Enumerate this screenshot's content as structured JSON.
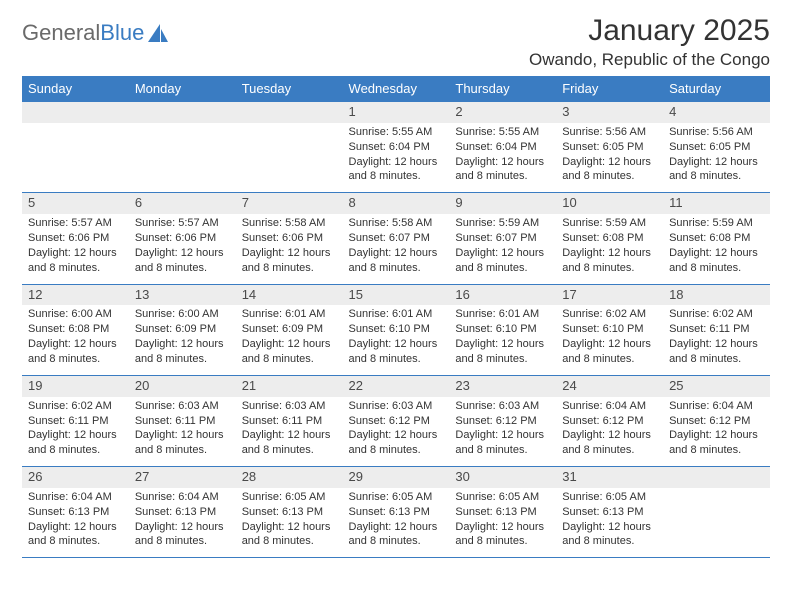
{
  "brand": {
    "part1": "General",
    "part2": "Blue"
  },
  "title": "January 2025",
  "location": "Owando, Republic of the Congo",
  "colors": {
    "accent": "#3a7cc2",
    "header_bg": "#ededed",
    "text": "#333333",
    "logo_gray": "#6a6a6a",
    "bg": "#ffffff"
  },
  "typography": {
    "title_fontsize": 30,
    "location_fontsize": 17,
    "dow_fontsize": 13,
    "daynum_fontsize": 13,
    "body_fontsize": 11
  },
  "layout": {
    "columns": 7,
    "rows": 5
  },
  "days_of_week": [
    "Sunday",
    "Monday",
    "Tuesday",
    "Wednesday",
    "Thursday",
    "Friday",
    "Saturday"
  ],
  "weeks": [
    [
      {
        "n": "",
        "sunrise": "",
        "sunset": "",
        "daylight": ""
      },
      {
        "n": "",
        "sunrise": "",
        "sunset": "",
        "daylight": ""
      },
      {
        "n": "",
        "sunrise": "",
        "sunset": "",
        "daylight": ""
      },
      {
        "n": "1",
        "sunrise": "Sunrise: 5:55 AM",
        "sunset": "Sunset: 6:04 PM",
        "daylight": "Daylight: 12 hours and 8 minutes."
      },
      {
        "n": "2",
        "sunrise": "Sunrise: 5:55 AM",
        "sunset": "Sunset: 6:04 PM",
        "daylight": "Daylight: 12 hours and 8 minutes."
      },
      {
        "n": "3",
        "sunrise": "Sunrise: 5:56 AM",
        "sunset": "Sunset: 6:05 PM",
        "daylight": "Daylight: 12 hours and 8 minutes."
      },
      {
        "n": "4",
        "sunrise": "Sunrise: 5:56 AM",
        "sunset": "Sunset: 6:05 PM",
        "daylight": "Daylight: 12 hours and 8 minutes."
      }
    ],
    [
      {
        "n": "5",
        "sunrise": "Sunrise: 5:57 AM",
        "sunset": "Sunset: 6:06 PM",
        "daylight": "Daylight: 12 hours and 8 minutes."
      },
      {
        "n": "6",
        "sunrise": "Sunrise: 5:57 AM",
        "sunset": "Sunset: 6:06 PM",
        "daylight": "Daylight: 12 hours and 8 minutes."
      },
      {
        "n": "7",
        "sunrise": "Sunrise: 5:58 AM",
        "sunset": "Sunset: 6:06 PM",
        "daylight": "Daylight: 12 hours and 8 minutes."
      },
      {
        "n": "8",
        "sunrise": "Sunrise: 5:58 AM",
        "sunset": "Sunset: 6:07 PM",
        "daylight": "Daylight: 12 hours and 8 minutes."
      },
      {
        "n": "9",
        "sunrise": "Sunrise: 5:59 AM",
        "sunset": "Sunset: 6:07 PM",
        "daylight": "Daylight: 12 hours and 8 minutes."
      },
      {
        "n": "10",
        "sunrise": "Sunrise: 5:59 AM",
        "sunset": "Sunset: 6:08 PM",
        "daylight": "Daylight: 12 hours and 8 minutes."
      },
      {
        "n": "11",
        "sunrise": "Sunrise: 5:59 AM",
        "sunset": "Sunset: 6:08 PM",
        "daylight": "Daylight: 12 hours and 8 minutes."
      }
    ],
    [
      {
        "n": "12",
        "sunrise": "Sunrise: 6:00 AM",
        "sunset": "Sunset: 6:08 PM",
        "daylight": "Daylight: 12 hours and 8 minutes."
      },
      {
        "n": "13",
        "sunrise": "Sunrise: 6:00 AM",
        "sunset": "Sunset: 6:09 PM",
        "daylight": "Daylight: 12 hours and 8 minutes."
      },
      {
        "n": "14",
        "sunrise": "Sunrise: 6:01 AM",
        "sunset": "Sunset: 6:09 PM",
        "daylight": "Daylight: 12 hours and 8 minutes."
      },
      {
        "n": "15",
        "sunrise": "Sunrise: 6:01 AM",
        "sunset": "Sunset: 6:10 PM",
        "daylight": "Daylight: 12 hours and 8 minutes."
      },
      {
        "n": "16",
        "sunrise": "Sunrise: 6:01 AM",
        "sunset": "Sunset: 6:10 PM",
        "daylight": "Daylight: 12 hours and 8 minutes."
      },
      {
        "n": "17",
        "sunrise": "Sunrise: 6:02 AM",
        "sunset": "Sunset: 6:10 PM",
        "daylight": "Daylight: 12 hours and 8 minutes."
      },
      {
        "n": "18",
        "sunrise": "Sunrise: 6:02 AM",
        "sunset": "Sunset: 6:11 PM",
        "daylight": "Daylight: 12 hours and 8 minutes."
      }
    ],
    [
      {
        "n": "19",
        "sunrise": "Sunrise: 6:02 AM",
        "sunset": "Sunset: 6:11 PM",
        "daylight": "Daylight: 12 hours and 8 minutes."
      },
      {
        "n": "20",
        "sunrise": "Sunrise: 6:03 AM",
        "sunset": "Sunset: 6:11 PM",
        "daylight": "Daylight: 12 hours and 8 minutes."
      },
      {
        "n": "21",
        "sunrise": "Sunrise: 6:03 AM",
        "sunset": "Sunset: 6:11 PM",
        "daylight": "Daylight: 12 hours and 8 minutes."
      },
      {
        "n": "22",
        "sunrise": "Sunrise: 6:03 AM",
        "sunset": "Sunset: 6:12 PM",
        "daylight": "Daylight: 12 hours and 8 minutes."
      },
      {
        "n": "23",
        "sunrise": "Sunrise: 6:03 AM",
        "sunset": "Sunset: 6:12 PM",
        "daylight": "Daylight: 12 hours and 8 minutes."
      },
      {
        "n": "24",
        "sunrise": "Sunrise: 6:04 AM",
        "sunset": "Sunset: 6:12 PM",
        "daylight": "Daylight: 12 hours and 8 minutes."
      },
      {
        "n": "25",
        "sunrise": "Sunrise: 6:04 AM",
        "sunset": "Sunset: 6:12 PM",
        "daylight": "Daylight: 12 hours and 8 minutes."
      }
    ],
    [
      {
        "n": "26",
        "sunrise": "Sunrise: 6:04 AM",
        "sunset": "Sunset: 6:13 PM",
        "daylight": "Daylight: 12 hours and 8 minutes."
      },
      {
        "n": "27",
        "sunrise": "Sunrise: 6:04 AM",
        "sunset": "Sunset: 6:13 PM",
        "daylight": "Daylight: 12 hours and 8 minutes."
      },
      {
        "n": "28",
        "sunrise": "Sunrise: 6:05 AM",
        "sunset": "Sunset: 6:13 PM",
        "daylight": "Daylight: 12 hours and 8 minutes."
      },
      {
        "n": "29",
        "sunrise": "Sunrise: 6:05 AM",
        "sunset": "Sunset: 6:13 PM",
        "daylight": "Daylight: 12 hours and 8 minutes."
      },
      {
        "n": "30",
        "sunrise": "Sunrise: 6:05 AM",
        "sunset": "Sunset: 6:13 PM",
        "daylight": "Daylight: 12 hours and 8 minutes."
      },
      {
        "n": "31",
        "sunrise": "Sunrise: 6:05 AM",
        "sunset": "Sunset: 6:13 PM",
        "daylight": "Daylight: 12 hours and 8 minutes."
      },
      {
        "n": "",
        "sunrise": "",
        "sunset": "",
        "daylight": ""
      }
    ]
  ]
}
